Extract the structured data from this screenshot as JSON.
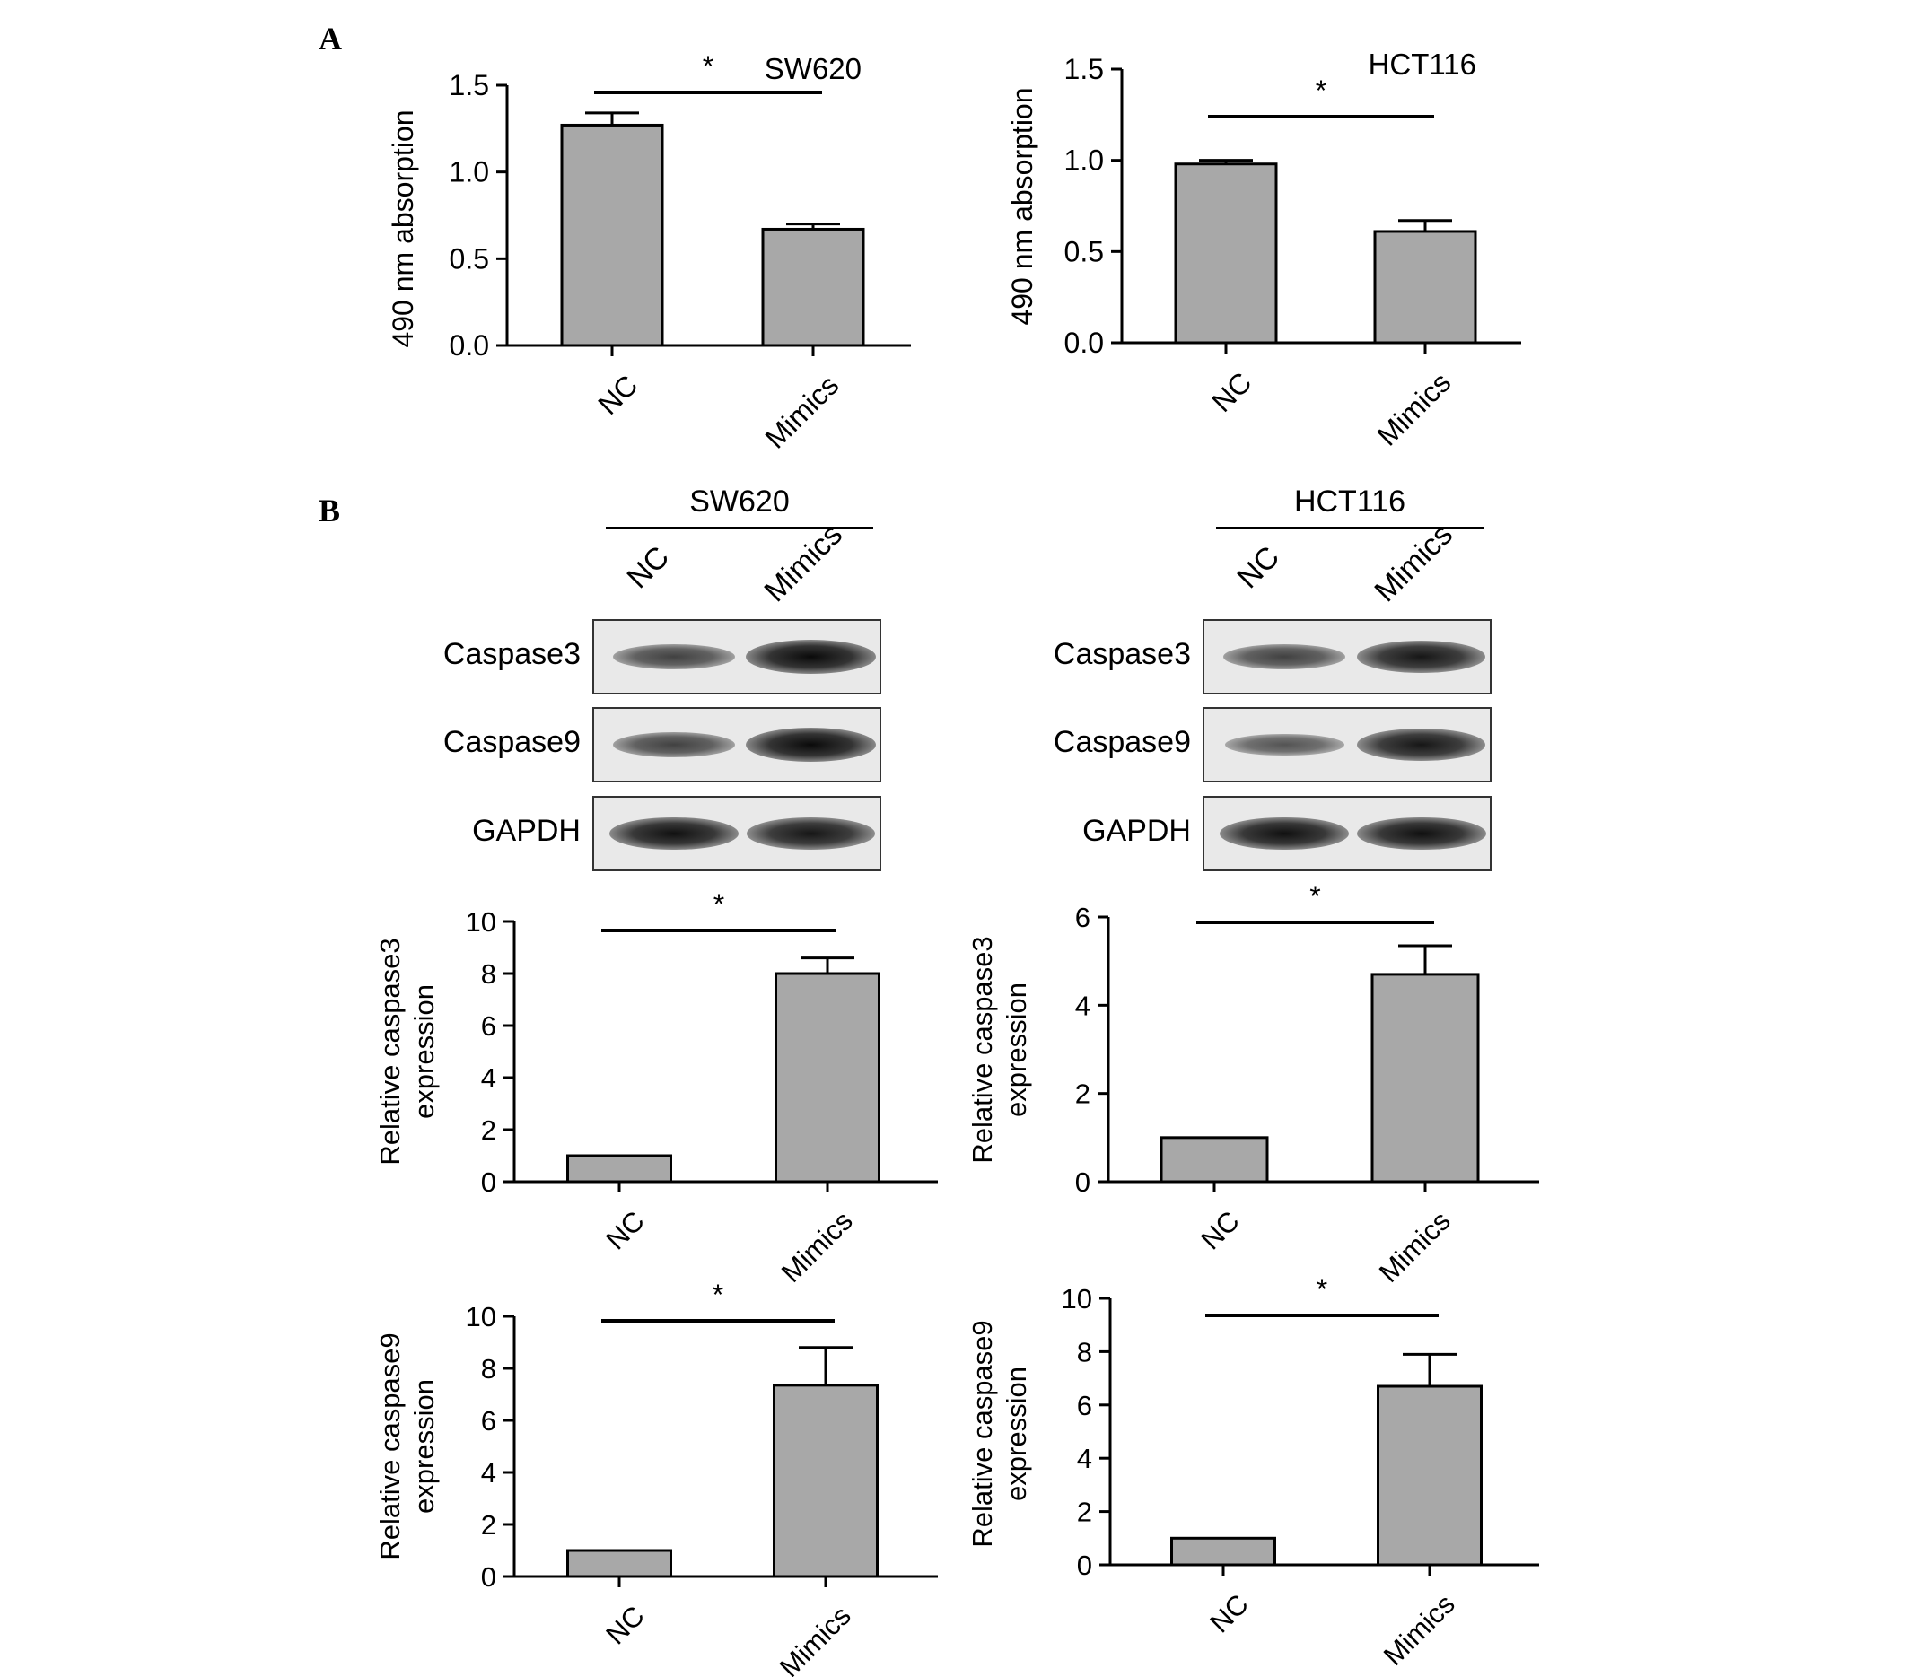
{
  "panels": {
    "a": "A",
    "b": "B"
  },
  "colors": {
    "bar": "#a8a8a8",
    "ink": "#000000"
  },
  "chart_data": [
    {
      "id": "a-sw620",
      "type": "bar",
      "title": "SW620",
      "ylabel": "490 nm absorption",
      "ylim": [
        0,
        1.5
      ],
      "ticks": [
        0.0,
        0.5,
        1.0,
        1.5
      ],
      "tick_labels": [
        "0.0",
        "0.5",
        "1.0",
        "1.5"
      ],
      "categories": [
        "NC",
        "Mimics"
      ],
      "values": [
        1.27,
        0.67
      ],
      "errors": [
        0.07,
        0.03
      ],
      "significance": "*"
    },
    {
      "id": "a-hct116",
      "type": "bar",
      "title": "HCT116",
      "ylabel": "490 nm absorption",
      "ylim": [
        0,
        1.5
      ],
      "ticks": [
        0.0,
        0.5,
        1.0,
        1.5
      ],
      "tick_labels": [
        "0.0",
        "0.5",
        "1.0",
        "1.5"
      ],
      "categories": [
        "NC",
        "Mimics"
      ],
      "values": [
        0.98,
        0.61
      ],
      "errors": [
        0.02,
        0.06
      ],
      "significance": "*"
    },
    {
      "id": "b-sw620-casp3",
      "type": "bar",
      "title": "",
      "ylabel": "Relative caspase3 expression",
      "ylim": [
        0,
        10
      ],
      "ticks": [
        0,
        2,
        4,
        6,
        8,
        10
      ],
      "tick_labels": [
        "0",
        "2",
        "4",
        "6",
        "8",
        "10"
      ],
      "categories": [
        "NC",
        "Mimics"
      ],
      "values": [
        1.0,
        8.0
      ],
      "errors": [
        0,
        0.6
      ],
      "significance": "*"
    },
    {
      "id": "b-hct116-casp3",
      "type": "bar",
      "title": "",
      "ylabel": "Relative caspase3 expression",
      "ylim": [
        0,
        6
      ],
      "ticks": [
        0,
        2,
        4,
        6
      ],
      "tick_labels": [
        "0",
        "2",
        "4",
        "6"
      ],
      "categories": [
        "NC",
        "Mimics"
      ],
      "values": [
        1.0,
        4.7
      ],
      "errors": [
        0,
        0.65
      ],
      "significance": "*"
    },
    {
      "id": "b-sw620-casp9",
      "type": "bar",
      "title": "",
      "ylabel": "Relative caspase9 expression",
      "ylim": [
        0,
        10
      ],
      "ticks": [
        0,
        2,
        4,
        6,
        8,
        10
      ],
      "tick_labels": [
        "0",
        "2",
        "4",
        "6",
        "8",
        "10"
      ],
      "categories": [
        "NC",
        "Mimics"
      ],
      "values": [
        1.0,
        7.35
      ],
      "errors": [
        0,
        1.45
      ],
      "significance": "*"
    },
    {
      "id": "b-hct116-casp9",
      "type": "bar",
      "title": "",
      "ylabel": "Relative caspase9 expression",
      "ylim": [
        0,
        10
      ],
      "ticks": [
        0,
        2,
        4,
        6,
        8,
        10
      ],
      "tick_labels": [
        "0",
        "2",
        "4",
        "6",
        "8",
        "10"
      ],
      "categories": [
        "NC",
        "Mimics"
      ],
      "values": [
        1.0,
        6.7
      ],
      "errors": [
        0,
        1.2
      ],
      "significance": "*"
    }
  ],
  "blots": [
    {
      "id": "blot-sw620",
      "cell_line": "SW620",
      "lanes": [
        "NC",
        "Mimics"
      ],
      "rows": [
        {
          "label": "Caspase3",
          "intensities": [
            0.55,
            1.0
          ]
        },
        {
          "label": "Caspase9",
          "intensities": [
            0.55,
            1.0
          ]
        },
        {
          "label": "GAPDH",
          "intensities": [
            0.95,
            0.9
          ]
        }
      ]
    },
    {
      "id": "blot-hct116",
      "cell_line": "HCT116",
      "lanes": [
        "NC",
        "Mimics"
      ],
      "rows": [
        {
          "label": "Caspase3",
          "intensities": [
            0.55,
            0.9
          ]
        },
        {
          "label": "Caspase9",
          "intensities": [
            0.4,
            0.9
          ]
        },
        {
          "label": "GAPDH",
          "intensities": [
            0.95,
            0.95
          ]
        }
      ]
    }
  ]
}
